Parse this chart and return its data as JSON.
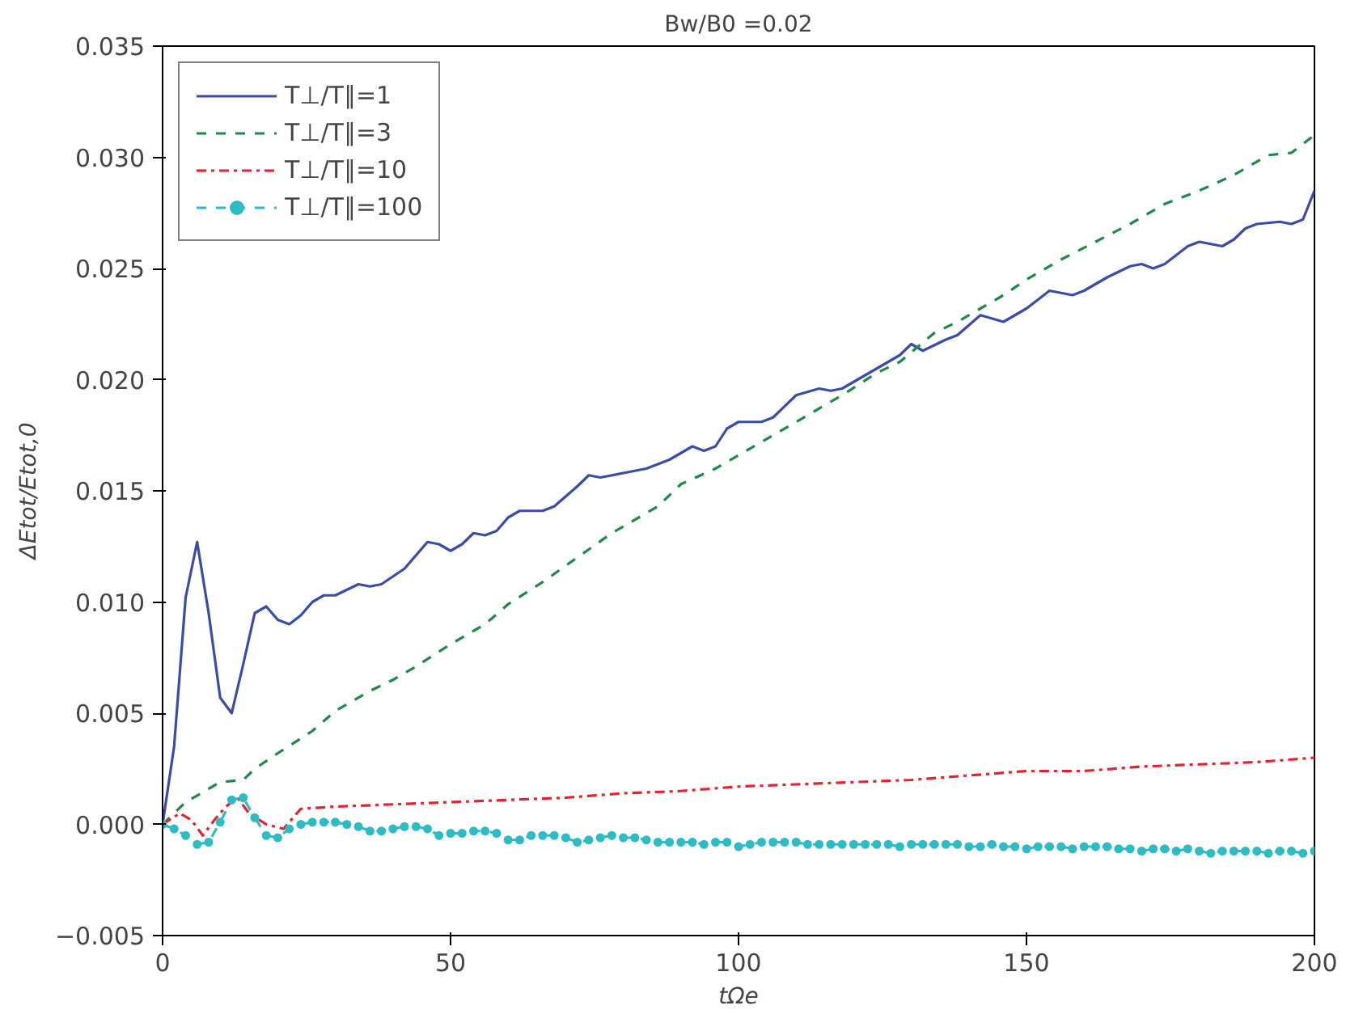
{
  "chart_data": {
    "type": "line",
    "title": "Bw/B0 =0.02",
    "xlabel": "tΩe",
    "ylabel": "ΔEtot/Etot,0",
    "xlim": [
      0,
      200
    ],
    "ylim": [
      -0.005,
      0.035
    ],
    "xticks": [
      0,
      50,
      100,
      150,
      200
    ],
    "yticks": [
      {
        "value": -0.005,
        "label": "−0.005"
      },
      {
        "value": 0,
        "label": "0.000"
      },
      {
        "value": 0.005,
        "label": "0.005"
      },
      {
        "value": 0.01,
        "label": "0.010"
      },
      {
        "value": 0.015,
        "label": "0.015"
      },
      {
        "value": 0.02,
        "label": "0.020"
      },
      {
        "value": 0.025,
        "label": "0.025"
      },
      {
        "value": 0.03,
        "label": "0.030"
      },
      {
        "value": 0.035,
        "label": "0.035"
      }
    ],
    "grid": false,
    "legend": "top left",
    "series": [
      {
        "name": "T⊥/T∥=1",
        "color": "#3a4ca8",
        "line_style": "solid",
        "marker": "none",
        "x": [
          0,
          2,
          4,
          6,
          8,
          10,
          12,
          14,
          16,
          18,
          20,
          22,
          24,
          26,
          28,
          30,
          34,
          36,
          38,
          42,
          46,
          48,
          50,
          52,
          54,
          56,
          58,
          60,
          62,
          66,
          68,
          72,
          74,
          76,
          80,
          84,
          88,
          92,
          94,
          96,
          98,
          100,
          104,
          106,
          110,
          114,
          116,
          118,
          120,
          124,
          128,
          130,
          132,
          136,
          138,
          142,
          146,
          150,
          154,
          158,
          160,
          164,
          168,
          170,
          172,
          174,
          178,
          180,
          184,
          186,
          188,
          190,
          194,
          196,
          198,
          200
        ],
        "values": [
          0,
          0.0035,
          0.0102,
          0.0127,
          0.0095,
          0.0057,
          0.005,
          0.0072,
          0.0095,
          0.0098,
          0.0092,
          0.009,
          0.0094,
          0.01,
          0.0103,
          0.0103,
          0.0108,
          0.0107,
          0.0108,
          0.0115,
          0.0127,
          0.0126,
          0.0123,
          0.0126,
          0.0131,
          0.013,
          0.0132,
          0.0138,
          0.0141,
          0.0141,
          0.0143,
          0.0152,
          0.0157,
          0.0156,
          0.0158,
          0.016,
          0.0164,
          0.017,
          0.0168,
          0.017,
          0.0178,
          0.0181,
          0.0181,
          0.0183,
          0.0193,
          0.0196,
          0.0195,
          0.0196,
          0.0199,
          0.0205,
          0.0211,
          0.0216,
          0.0213,
          0.0218,
          0.022,
          0.0229,
          0.0226,
          0.0232,
          0.024,
          0.0238,
          0.024,
          0.0246,
          0.0251,
          0.0252,
          0.025,
          0.0252,
          0.026,
          0.0262,
          0.026,
          0.0263,
          0.0268,
          0.027,
          0.0271,
          0.027,
          0.0272,
          0.0285
        ]
      },
      {
        "name": "T⊥/T∥=3",
        "color": "#1e8a4a",
        "line_style": "dashed",
        "marker": "none",
        "x": [
          0,
          4,
          10,
          14,
          16,
          20,
          26,
          30,
          36,
          40,
          44,
          50,
          56,
          60,
          66,
          72,
          78,
          86,
          90,
          96,
          100,
          106,
          112,
          118,
          124,
          128,
          134,
          138,
          142,
          146,
          150,
          156,
          162,
          168,
          174,
          180,
          186,
          192,
          196,
          200
        ],
        "values": [
          0,
          0.001,
          0.0019,
          0.002,
          0.0025,
          0.0032,
          0.0042,
          0.0051,
          0.006,
          0.0065,
          0.0071,
          0.0081,
          0.009,
          0.0099,
          0.0109,
          0.012,
          0.0131,
          0.0143,
          0.0153,
          0.016,
          0.0166,
          0.0175,
          0.0184,
          0.0193,
          0.0203,
          0.0208,
          0.0221,
          0.0226,
          0.0232,
          0.0238,
          0.0245,
          0.0254,
          0.0262,
          0.027,
          0.0279,
          0.0285,
          0.0292,
          0.0301,
          0.0302,
          0.031
        ]
      },
      {
        "name": "T⊥/T∥=10",
        "color": "#e8212e",
        "line_style": "dashdot",
        "marker": "none",
        "x": [
          0,
          3,
          5,
          7,
          9,
          11,
          13,
          15,
          18,
          21,
          24,
          30,
          40,
          50,
          60,
          70,
          80,
          90,
          100,
          110,
          120,
          130,
          140,
          150,
          160,
          170,
          180,
          190,
          200
        ],
        "values": [
          0,
          0.0005,
          0.0002,
          -0.0005,
          0.0002,
          0.0008,
          0.0012,
          0.0005,
          0,
          -0.0002,
          0.0007,
          0.0008,
          0.0009,
          0.001,
          0.0011,
          0.0012,
          0.0014,
          0.0015,
          0.0017,
          0.0018,
          0.0019,
          0.002,
          0.0022,
          0.0024,
          0.0024,
          0.0026,
          0.0027,
          0.0028,
          0.003
        ]
      },
      {
        "name": "T⊥/T∥=100",
        "color": "#2ebcc4",
        "line_style": "dashed",
        "marker": "circle",
        "x": [
          0,
          2,
          4,
          6,
          8,
          10,
          12,
          14,
          16,
          18,
          20,
          22,
          24,
          26,
          28,
          30,
          32,
          34,
          36,
          38,
          40,
          42,
          44,
          46,
          48,
          50,
          52,
          54,
          56,
          58,
          60,
          62,
          64,
          66,
          68,
          70,
          72,
          74,
          76,
          78,
          80,
          82,
          84,
          86,
          88,
          90,
          92,
          94,
          96,
          98,
          100,
          102,
          104,
          106,
          108,
          110,
          112,
          114,
          116,
          118,
          120,
          122,
          124,
          126,
          128,
          130,
          132,
          134,
          136,
          138,
          140,
          142,
          144,
          146,
          148,
          150,
          152,
          154,
          156,
          158,
          160,
          162,
          164,
          166,
          168,
          170,
          172,
          174,
          176,
          178,
          180,
          182,
          184,
          186,
          188,
          190,
          192,
          194,
          196,
          198,
          200
        ],
        "values": [
          0,
          -0.0002,
          -0.0005,
          -0.0009,
          -0.0008,
          0.0001,
          0.0011,
          0.0012,
          0.0003,
          -0.0005,
          -0.0006,
          -0.0002,
          0,
          0.0001,
          0.0001,
          0.0001,
          0,
          -0.0001,
          -0.0003,
          -0.0003,
          -0.0002,
          -0.0001,
          -0.0001,
          -0.0002,
          -0.0005,
          -0.0004,
          -0.0004,
          -0.0003,
          -0.0003,
          -0.0004,
          -0.0007,
          -0.0007,
          -0.0005,
          -0.0005,
          -0.0005,
          -0.0006,
          -0.0008,
          -0.0007,
          -0.0006,
          -0.0005,
          -0.0006,
          -0.0006,
          -0.0007,
          -0.0008,
          -0.0008,
          -0.0008,
          -0.0008,
          -0.0009,
          -0.0008,
          -0.0008,
          -0.001,
          -0.0009,
          -0.0008,
          -0.0008,
          -0.0008,
          -0.0008,
          -0.0009,
          -0.0009,
          -0.0009,
          -0.0009,
          -0.0009,
          -0.0009,
          -0.0009,
          -0.0009,
          -0.001,
          -0.0009,
          -0.0009,
          -0.0009,
          -0.0009,
          -0.0009,
          -0.001,
          -0.001,
          -0.0009,
          -0.001,
          -0.001,
          -0.0011,
          -0.001,
          -0.001,
          -0.001,
          -0.0011,
          -0.001,
          -0.001,
          -0.001,
          -0.0011,
          -0.0011,
          -0.0012,
          -0.0011,
          -0.0011,
          -0.0012,
          -0.0011,
          -0.0012,
          -0.0013,
          -0.0012,
          -0.0012,
          -0.0012,
          -0.0012,
          -0.0013,
          -0.0012,
          -0.0012,
          -0.0013,
          -0.0012
        ]
      }
    ]
  }
}
